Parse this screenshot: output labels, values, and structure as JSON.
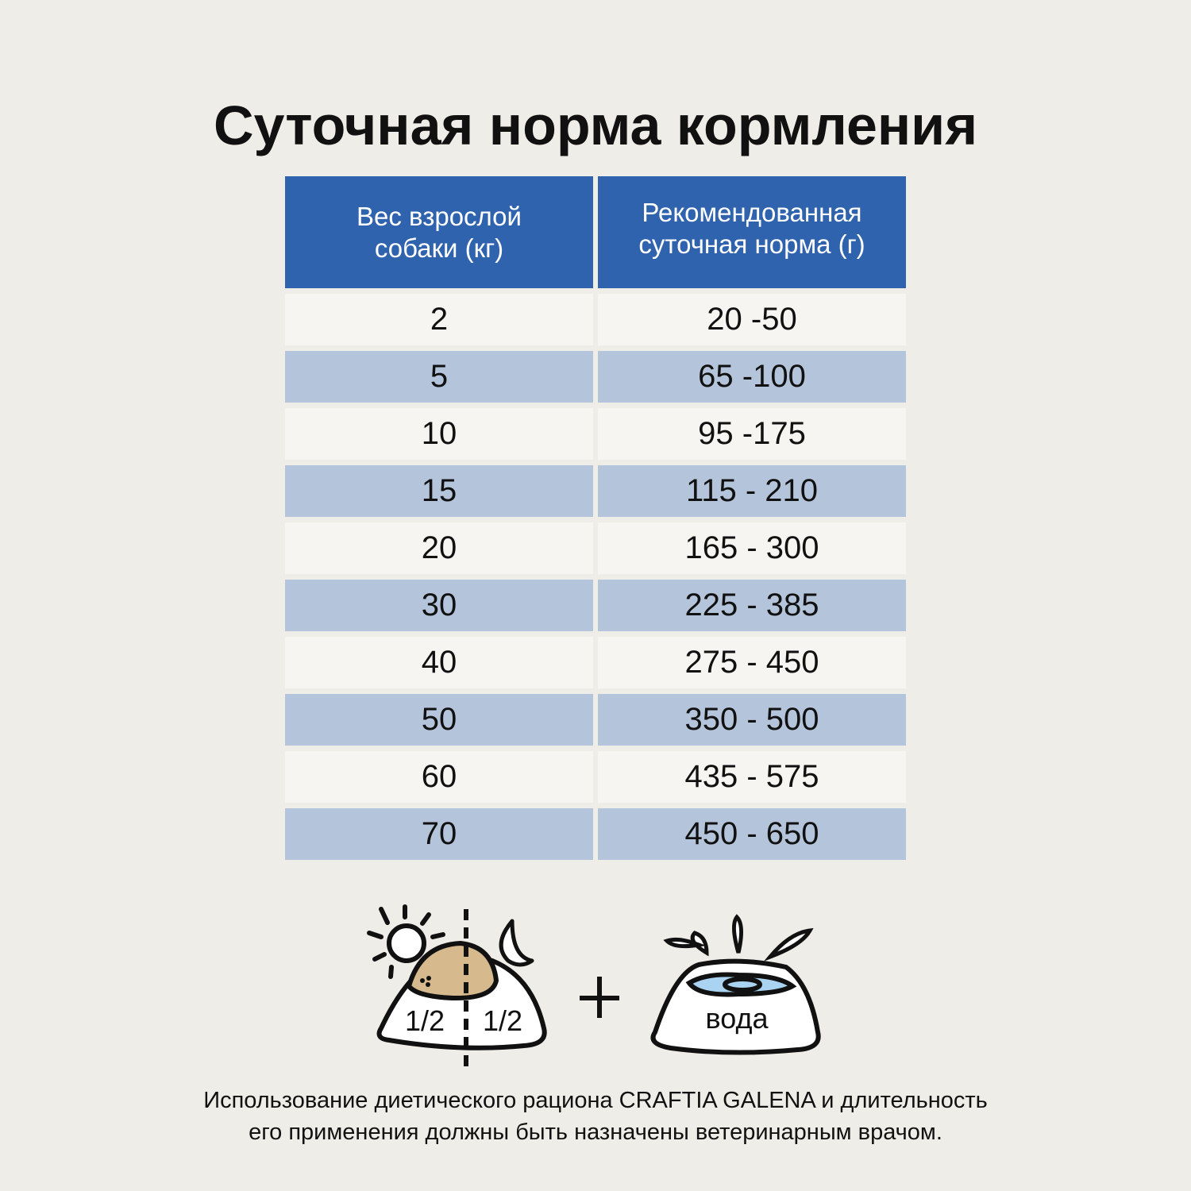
{
  "title": "Суточная норма кормления",
  "table": {
    "headers": [
      "Вес взрослой собаки (кг)",
      "Рекомендованная суточная норма (г)"
    ],
    "rows": [
      [
        "2",
        "20 -50"
      ],
      [
        "5",
        "65 -100"
      ],
      [
        "10",
        "95 -175"
      ],
      [
        "15",
        "115 - 210"
      ],
      [
        "20",
        "165 - 300"
      ],
      [
        "30",
        "225 - 385"
      ],
      [
        "40",
        "275 - 450"
      ],
      [
        "50",
        "350 - 500"
      ],
      [
        "60",
        "435 - 575"
      ],
      [
        "70",
        "450 - 650"
      ]
    ]
  },
  "illustration": {
    "food_left": "1/2",
    "food_right": "1/2",
    "plus": "+",
    "water": "вода",
    "icons": [
      "sun-icon",
      "moon-icon",
      "food-bowl-icon",
      "water-bowl-icon"
    ]
  },
  "note": {
    "line1": "Использование диетического рациона CRAFTIA GALENA и длительность",
    "line2": "его применения должны быть назначены ветеринарным врачом."
  },
  "colors": {
    "header": "#3063ae",
    "row_dark": "#b4c4da",
    "row_light": "#f6f5f2",
    "food": "#d6b98c",
    "water": "#a9d3f0"
  }
}
